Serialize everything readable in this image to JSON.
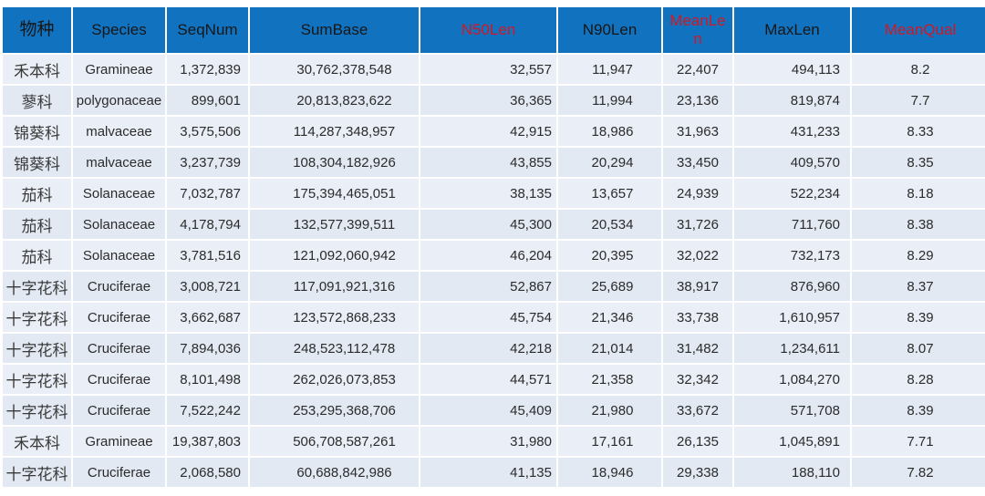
{
  "colors": {
    "header_bg": "#1173bf",
    "header_text": "#161616",
    "accent_red": "#d01825",
    "row_odd": "#eaeef6",
    "row_even": "#e2e9f3"
  },
  "table": {
    "columns": [
      {
        "key": "family",
        "label": "物种",
        "accent": false
      },
      {
        "key": "species",
        "label": "Species",
        "accent": false
      },
      {
        "key": "seqnum",
        "label": "SeqNum",
        "accent": false
      },
      {
        "key": "sumbase",
        "label": "SumBase",
        "accent": false
      },
      {
        "key": "n50len",
        "label": "N50Len",
        "accent": true
      },
      {
        "key": "n90len",
        "label": "N90Len",
        "accent": false
      },
      {
        "key": "meanlen",
        "label": "MeanLen",
        "accent": true,
        "wrap": true
      },
      {
        "key": "maxlen",
        "label": "MaxLen",
        "accent": false
      },
      {
        "key": "meanqual",
        "label": "MeanQual",
        "accent": true
      }
    ],
    "rows": [
      [
        "禾本科",
        "Gramineae",
        "1,372,839",
        "30,762,378,548",
        "32,557",
        "11,947",
        "22,407",
        "494,113",
        "8.2"
      ],
      [
        "蓼科",
        "polygonaceae",
        "899,601",
        "20,813,823,622",
        "36,365",
        "11,994",
        "23,136",
        "819,874",
        "7.7"
      ],
      [
        "锦葵科",
        "malvaceae",
        "3,575,506",
        "114,287,348,957",
        "42,915",
        "18,986",
        "31,963",
        "431,233",
        "8.33"
      ],
      [
        "锦葵科",
        "malvaceae",
        "3,237,739",
        "108,304,182,926",
        "43,855",
        "20,294",
        "33,450",
        "409,570",
        "8.35"
      ],
      [
        "茄科",
        "Solanaceae",
        "7,032,787",
        "175,394,465,051",
        "38,135",
        "13,657",
        "24,939",
        "522,234",
        "8.18"
      ],
      [
        "茄科",
        "Solanaceae",
        "4,178,794",
        "132,577,399,511",
        "45,300",
        "20,534",
        "31,726",
        "711,760",
        "8.38"
      ],
      [
        "茄科",
        "Solanaceae",
        "3,781,516",
        "121,092,060,942",
        "46,204",
        "20,395",
        "32,022",
        "732,173",
        "8.29"
      ],
      [
        "十字花科",
        "Cruciferae",
        "3,008,721",
        "117,091,921,316",
        "52,867",
        "25,689",
        "38,917",
        "876,960",
        "8.37"
      ],
      [
        "十字花科",
        "Cruciferae",
        "3,662,687",
        "123,572,868,233",
        "45,754",
        "21,346",
        "33,738",
        "1,610,957",
        "8.39"
      ],
      [
        "十字花科",
        "Cruciferae",
        "7,894,036",
        "248,523,112,478",
        "42,218",
        "21,014",
        "31,482",
        "1,234,611",
        "8.07"
      ],
      [
        "十字花科",
        "Cruciferae",
        "8,101,498",
        "262,026,073,853",
        "44,571",
        "21,358",
        "32,342",
        "1,084,270",
        "8.28"
      ],
      [
        "十字花科",
        "Cruciferae",
        "7,522,242",
        "253,295,368,706",
        "45,409",
        "21,980",
        "33,672",
        "571,708",
        "8.39"
      ],
      [
        "禾本科",
        "Gramineae",
        "19,387,803",
        "506,708,587,261",
        "31,980",
        "17,161",
        "26,135",
        "1,045,891",
        "7.71"
      ],
      [
        "十字花科",
        "Cruciferae",
        "2,068,580",
        "60,688,842,986",
        "41,135",
        "18,946",
        "29,338",
        "188,110",
        "7.82"
      ]
    ]
  }
}
